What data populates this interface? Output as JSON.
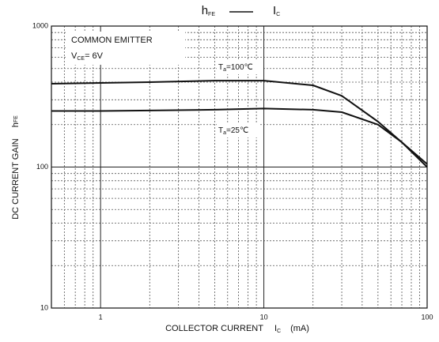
{
  "chart_data": {
    "type": "line",
    "title": {
      "left": "h",
      "left_sub": "FE",
      "right": "I",
      "right_sub": "C"
    },
    "ylabel": {
      "text": "DC CURRENT GAIN",
      "symbol": "h",
      "symbol_sub": "FE"
    },
    "xlabel": {
      "text": "COLLECTOR CURRENT",
      "symbol": "I",
      "symbol_sub": "C",
      "unit": "(mA)"
    },
    "annotations": {
      "mode": "COMMON EMITTER",
      "vce": {
        "main": "V",
        "sub": "CE",
        "rest": "= 6V"
      },
      "t100": {
        "main": "T",
        "sub": "a",
        "rest": "=100℃"
      },
      "t25": {
        "main": "T",
        "sub": "a",
        "rest": "=25℃"
      }
    },
    "x": [
      0.5,
      1,
      2,
      5,
      10,
      20,
      30,
      50,
      70,
      100
    ],
    "series": [
      {
        "name": "Ta=100℃",
        "color": "#111111",
        "values": [
          390,
          395,
          400,
          410,
          410,
          380,
          320,
          210,
          150,
          100
        ]
      },
      {
        "name": "Ta=25℃",
        "color": "#111111",
        "values": [
          250,
          250,
          252,
          255,
          260,
          255,
          245,
          200,
          150,
          105
        ]
      }
    ],
    "log_x": true,
    "log_y": true,
    "xlim": [
      0.5,
      100
    ],
    "xticks": [
      1,
      10,
      100
    ],
    "xminorticks": [
      0.6,
      0.7,
      0.8,
      0.9,
      2,
      3,
      4,
      5,
      6,
      7,
      8,
      9,
      20,
      30,
      40,
      50,
      60,
      70,
      80,
      90
    ],
    "ylim": [
      10,
      1000
    ],
    "yticks": [
      10,
      100,
      1000
    ],
    "yminorticks": [
      20,
      30,
      40,
      50,
      60,
      70,
      80,
      90,
      200,
      300,
      400,
      500,
      600,
      700,
      800,
      900
    ],
    "grid": true
  }
}
